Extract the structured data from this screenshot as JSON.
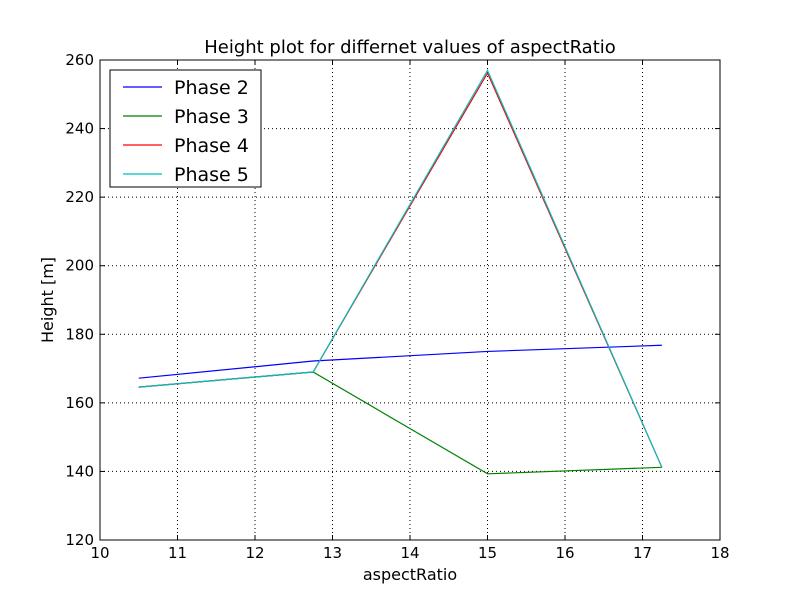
{
  "chart_data": {
    "type": "line",
    "title": "Height plot for differnet values of aspectRatio",
    "xlabel": "aspectRatio",
    "ylabel": "Height [m]",
    "xlim": [
      10,
      18
    ],
    "ylim": [
      120,
      260
    ],
    "xticks": [
      "10",
      "11",
      "12",
      "13",
      "14",
      "15",
      "16",
      "17",
      "18"
    ],
    "yticks": [
      "120",
      "140",
      "160",
      "180",
      "200",
      "220",
      "240",
      "260"
    ],
    "grid": true,
    "legend_position": "top-left",
    "x": [
      10.5,
      12.75,
      15.0,
      17.25
    ],
    "series": [
      {
        "name": "Phase 2",
        "color": "#0000ff",
        "values": [
          167.2,
          172.2,
          175.0,
          176.8
        ]
      },
      {
        "name": "Phase 3",
        "color": "#008000",
        "values": [
          164.6,
          169.0,
          139.3,
          141.2
        ]
      },
      {
        "name": "Phase 4",
        "color": "#ff0000",
        "values": [
          164.6,
          169.0,
          256.2,
          141.2
        ]
      },
      {
        "name": "Phase 5",
        "color": "#00bfbf",
        "values": [
          164.6,
          169.0,
          257.0,
          141.2
        ]
      }
    ]
  }
}
